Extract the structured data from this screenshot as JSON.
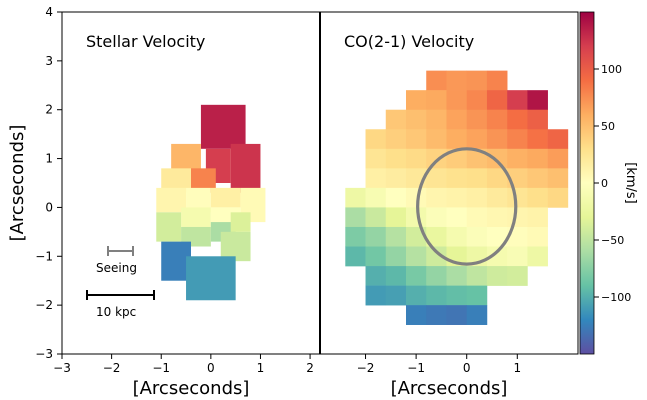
{
  "chart_data": [
    {
      "type": "heatmap",
      "title": "Stellar Velocity",
      "xlabel": "[Arcseconds]",
      "ylabel": "[Arcseconds]",
      "xlim": [
        -3,
        2.2
      ],
      "ylim": [
        -3,
        4
      ],
      "xticks": [
        "−3",
        "−2",
        "−1",
        "0",
        "1",
        "2"
      ],
      "yticks": [
        "−3",
        "−2",
        "−1",
        "0",
        "1",
        "2",
        "3",
        "4"
      ],
      "annotations": {
        "seeing_label": "Seeing",
        "scale_label": "10 kpc"
      },
      "bins": [
        {
          "x": [
            -0.2,
            0.7
          ],
          "y": [
            1.2,
            2.1
          ],
          "v": 135
        },
        {
          "x": [
            0.4,
            1.0
          ],
          "y": [
            0.3,
            1.3
          ],
          "v": 125
        },
        {
          "x": [
            -0.1,
            0.4
          ],
          "y": [
            0.5,
            1.2
          ],
          "v": 120
        },
        {
          "x": [
            -0.8,
            -0.2
          ],
          "y": [
            0.6,
            1.3
          ],
          "v": 55
        },
        {
          "x": [
            -0.4,
            0.1
          ],
          "y": [
            0.3,
            0.8
          ],
          "v": 80
        },
        {
          "x": [
            -1.0,
            -0.4
          ],
          "y": [
            0.3,
            0.8
          ],
          "v": 20
        },
        {
          "x": [
            -1.1,
            -0.5
          ],
          "y": [
            -0.1,
            0.4
          ],
          "v": 10
        },
        {
          "x": [
            -0.5,
            0.0
          ],
          "y": [
            -0.1,
            0.4
          ],
          "v": 2
        },
        {
          "x": [
            0.0,
            0.6
          ],
          "y": [
            0.0,
            0.4
          ],
          "v": 15
        },
        {
          "x": [
            0.6,
            1.1
          ],
          "y": [
            -0.3,
            0.4
          ],
          "v": 5
        },
        {
          "x": [
            -0.6,
            0.0
          ],
          "y": [
            -0.4,
            0.0
          ],
          "v": -12
        },
        {
          "x": [
            0.0,
            0.6
          ],
          "y": [
            -0.5,
            0.0
          ],
          "v": 0
        },
        {
          "x": [
            -1.1,
            -0.6
          ],
          "y": [
            -0.7,
            -0.1
          ],
          "v": -40
        },
        {
          "x": [
            -0.6,
            0.0
          ],
          "y": [
            -0.8,
            -0.4
          ],
          "v": -50
        },
        {
          "x": [
            0.0,
            0.5
          ],
          "y": [
            -0.7,
            -0.3
          ],
          "v": -60
        },
        {
          "x": [
            0.4,
            0.8
          ],
          "y": [
            -0.5,
            -0.1
          ],
          "v": -35
        },
        {
          "x": [
            0.2,
            0.8
          ],
          "y": [
            -1.1,
            -0.5
          ],
          "v": -45
        },
        {
          "x": [
            -1.0,
            -0.4
          ],
          "y": [
            -1.5,
            -0.7
          ],
          "v": -125
        },
        {
          "x": [
            -0.5,
            0.5
          ],
          "y": [
            -1.9,
            -1.0
          ],
          "v": -110
        }
      ]
    },
    {
      "type": "heatmap",
      "title": "CO(2-1) Velocity",
      "xlabel": "[Arcseconds]",
      "xlim": [
        -2.9,
        2.2
      ],
      "ylim": [
        -3,
        4
      ],
      "xticks": [
        "−2",
        "−1",
        "0",
        "1"
      ],
      "colorbar": {
        "label": "[km/s]",
        "range": [
          -150,
          150
        ],
        "ticks": [
          "100",
          "50",
          "0",
          "−50",
          "−100"
        ]
      },
      "ellipse": {
        "cx": 0.0,
        "cy": 0.02,
        "rx": 0.97,
        "ry": 1.18
      },
      "pixel_size": 0.4,
      "rows": [
        {
          "y": 2.6,
          "x0": -0.8,
          "values": [
            75,
            70,
            72,
            80
          ]
        },
        {
          "y": 2.2,
          "x0": -1.2,
          "values": [
            60,
            62,
            70,
            78,
            95,
            120,
            140
          ]
        },
        {
          "y": 1.8,
          "x0": -1.6,
          "values": [
            45,
            50,
            55,
            65,
            72,
            80,
            90,
            98
          ]
        },
        {
          "y": 1.4,
          "x0": -2.0,
          "values": [
            35,
            40,
            45,
            52,
            60,
            65,
            72,
            80,
            88,
            95
          ]
        },
        {
          "y": 1.0,
          "x0": -2.0,
          "values": [
            25,
            30,
            33,
            38,
            42,
            48,
            52,
            58,
            62,
            68
          ]
        },
        {
          "y": 0.6,
          "x0": -2.0,
          "values": [
            15,
            18,
            22,
            25,
            28,
            30,
            35,
            40,
            45,
            50
          ]
        },
        {
          "y": 0.2,
          "x0": -2.4,
          "values": [
            -20,
            -10,
            0,
            5,
            10,
            12,
            15,
            20,
            25,
            30,
            35
          ]
        },
        {
          "y": -0.2,
          "x0": -2.4,
          "values": [
            -60,
            -45,
            -30,
            -15,
            -5,
            0,
            5,
            8,
            10,
            12
          ]
        },
        {
          "y": -0.6,
          "x0": -2.4,
          "values": [
            -80,
            -70,
            -55,
            -40,
            -25,
            -12,
            -5,
            0,
            2,
            5
          ]
        },
        {
          "y": -1.0,
          "x0": -2.4,
          "values": [
            -95,
            -85,
            -70,
            -55,
            -42,
            -30,
            -20,
            -12,
            -8,
            -20
          ]
        },
        {
          "y": -1.4,
          "x0": -2.0,
          "values": [
            -100,
            -95,
            -82,
            -70,
            -60,
            -50,
            -42,
            -40
          ]
        },
        {
          "y": -1.8,
          "x0": -2.0,
          "values": [
            -110,
            -108,
            -100,
            -95,
            -92,
            -90
          ]
        },
        {
          "y": -2.2,
          "x0": -1.2,
          "values": [
            -125,
            -128,
            -130,
            -125
          ]
        }
      ]
    }
  ]
}
